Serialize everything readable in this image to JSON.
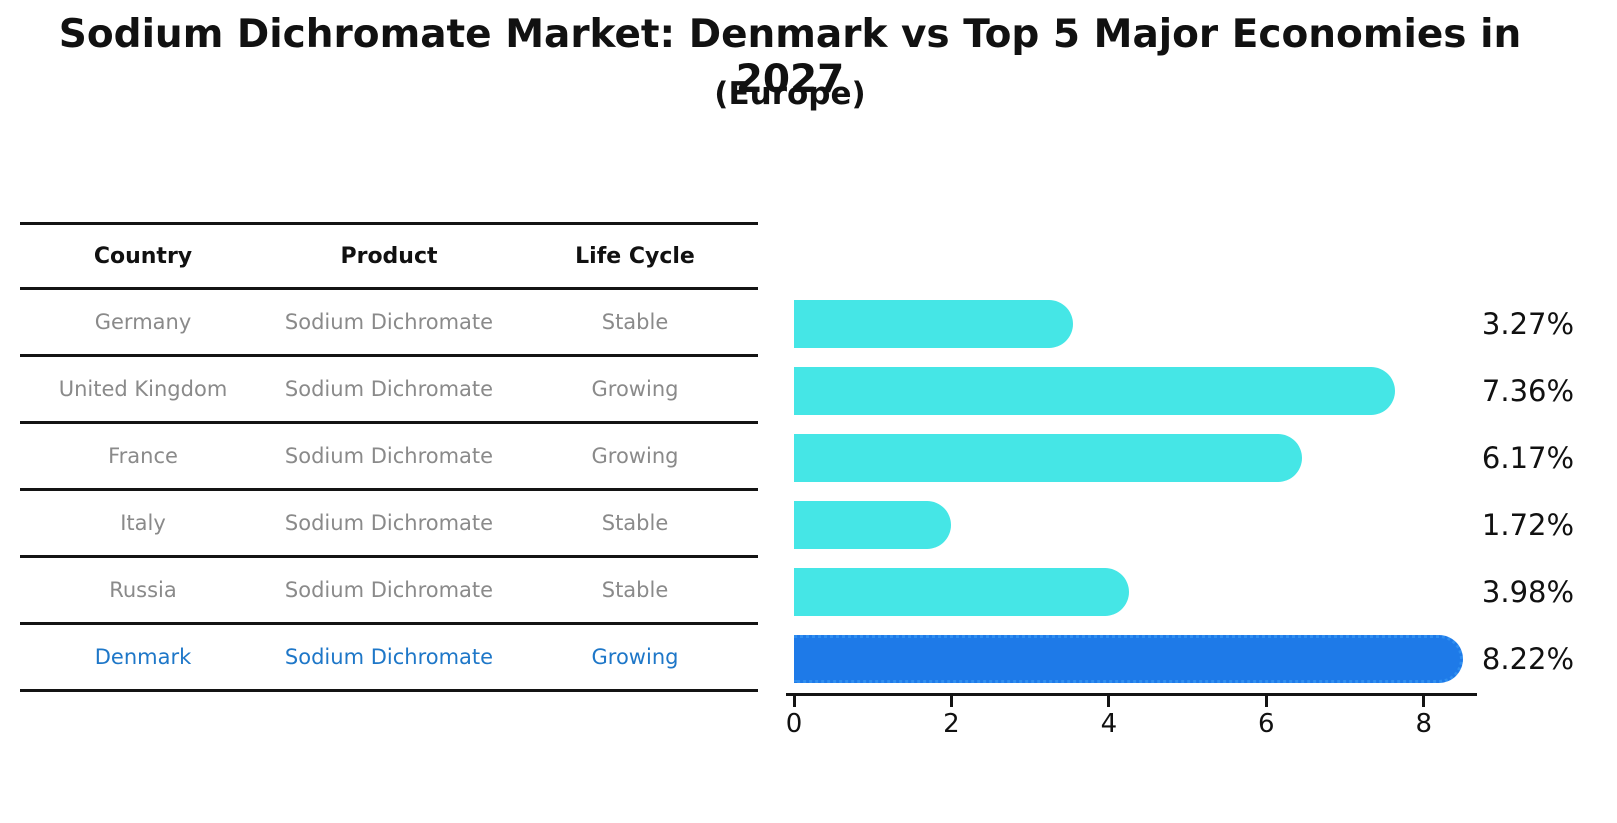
{
  "title": "Sodium Dichromate Market: Denmark vs Top 5 Major Economies in 2027",
  "subtitle": "(Europe)",
  "table": {
    "headers": [
      "Country",
      "Product",
      "Life Cycle"
    ],
    "rows": [
      {
        "country": "Germany",
        "product": "Sodium Dichromate",
        "life_cycle": "Stable",
        "highlighted": false
      },
      {
        "country": "United Kingdom",
        "product": "Sodium Dichromate",
        "life_cycle": "Growing",
        "highlighted": false
      },
      {
        "country": "France",
        "product": "Sodium Dichromate",
        "life_cycle": "Growing",
        "highlighted": false
      },
      {
        "country": "Italy",
        "product": "Sodium Dichromate",
        "life_cycle": "Stable",
        "highlighted": false
      },
      {
        "country": "Russia",
        "product": "Sodium Dichromate",
        "life_cycle": "Stable",
        "highlighted": false
      },
      {
        "country": "Denmark",
        "product": "Sodium Dichromate",
        "life_cycle": "Growing",
        "highlighted": true
      }
    ]
  },
  "chart_data": {
    "type": "bar",
    "orientation": "horizontal",
    "title": "Sodium Dichromate Market: Denmark vs Top 5 Major Economies in 2027",
    "subtitle": "(Europe)",
    "categories": [
      "Germany",
      "United Kingdom",
      "France",
      "Italy",
      "Russia",
      "Denmark"
    ],
    "values": [
      3.27,
      7.36,
      6.17,
      1.72,
      3.98,
      8.22
    ],
    "value_labels": [
      "3.27%",
      "7.36%",
      "6.17%",
      "1.72%",
      "3.98%",
      "8.22%"
    ],
    "xlabel": "",
    "ylabel": "",
    "x_ticks": [
      0,
      2,
      4,
      6,
      8
    ],
    "xlim": [
      0,
      8.6
    ],
    "grid": false,
    "legend": "none",
    "bar_color": "#45E6E6",
    "highlight_index": 5,
    "highlight_color": "#1E7AE8",
    "highlight_border_style": "dotted",
    "highlight_text_color": "#1E77C8",
    "axis_color": "#141414",
    "text_color": "#111111",
    "muted_text_color": "#8A8A8A"
  }
}
